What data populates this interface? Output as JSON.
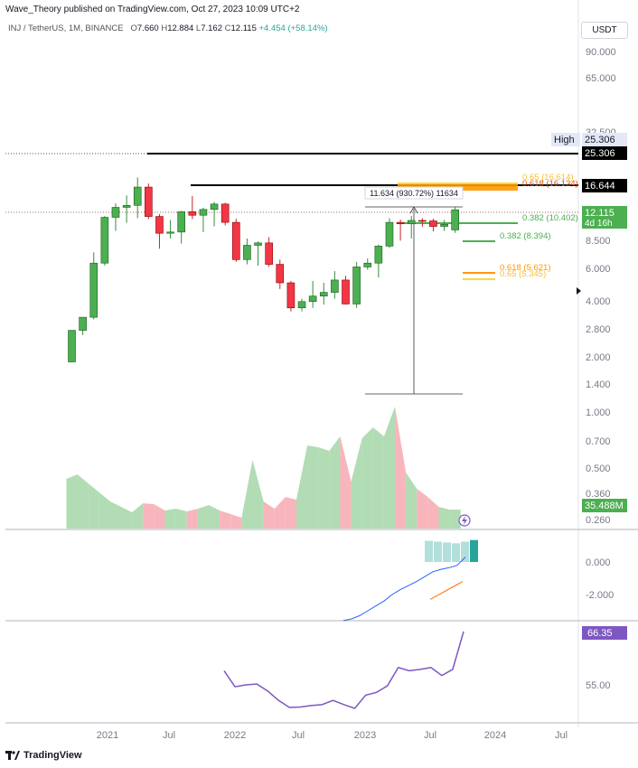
{
  "header": {
    "published": "Wave_Theory published on TradingView.com, Oct 27, 2023 10:09 UTC+2",
    "symbol": "INJ / TetherUS, 1M, BINANCE",
    "o_label": "O",
    "o": "7.660",
    "h_label": "H",
    "h": "12.884",
    "l_label": "L",
    "l": "7.162",
    "c_label": "C",
    "c": "12.115",
    "change": "+4.454 (+58.14%)",
    "currency": "USDT"
  },
  "footer": {
    "brand": "TradingView"
  },
  "colors": {
    "up": "#4caf50",
    "down": "#f23645",
    "vol_up": "#a5d6a7",
    "vol_down": "#f7a9b0",
    "rsi": "#7e57c2",
    "macd": "#2962ff",
    "signal": "#ff6d00"
  },
  "chart_data": {
    "type": "candlestick",
    "price_axis": {
      "scale": "log",
      "ticks": [
        "90.000",
        "65.000",
        "32.500",
        "8.500",
        "6.000",
        "4.000",
        "2.800",
        "2.000",
        "1.400",
        "1.000",
        "0.700",
        "0.500",
        "0.360",
        "0.260"
      ]
    },
    "time_axis": {
      "ticks": [
        "2021",
        "Jul",
        "2022",
        "Jul",
        "2023",
        "Jul",
        "2024",
        "Jul"
      ]
    },
    "candles": [
      {
        "t": "2020-12",
        "o": 0.38,
        "h": 0.78,
        "l": 0.38,
        "c": 0.78
      },
      {
        "t": "2021-01",
        "o": 0.78,
        "h": 1.05,
        "l": 0.7,
        "c": 1.05
      },
      {
        "t": "2021-02",
        "o": 1.05,
        "h": 4.6,
        "l": 1.0,
        "c": 3.6
      },
      {
        "t": "2021-03",
        "o": 3.6,
        "h": 10.5,
        "l": 3.4,
        "c": 10.2
      },
      {
        "t": "2021-04",
        "o": 10.2,
        "h": 14.0,
        "l": 7.5,
        "c": 12.8
      },
      {
        "t": "2021-05",
        "o": 12.8,
        "h": 16.8,
        "l": 9.0,
        "c": 13.4
      },
      {
        "t": "2021-06",
        "o": 13.4,
        "h": 25.3,
        "l": 10.0,
        "c": 20.3
      },
      {
        "t": "2021-07",
        "o": 20.3,
        "h": 22.0,
        "l": 9.8,
        "c": 10.4
      },
      {
        "t": "2021-08",
        "o": 10.4,
        "h": 11.0,
        "l": 5.0,
        "c": 7.1
      },
      {
        "t": "2021-09",
        "o": 7.1,
        "h": 9.6,
        "l": 6.3,
        "c": 7.3
      },
      {
        "t": "2021-10",
        "o": 7.3,
        "h": 11.8,
        "l": 5.6,
        "c": 11.6
      },
      {
        "t": "2021-11",
        "o": 11.6,
        "h": 16.6,
        "l": 9.8,
        "c": 10.7
      },
      {
        "t": "2021-12",
        "o": 10.7,
        "h": 12.7,
        "l": 7.3,
        "c": 12.2
      },
      {
        "t": "2022-01",
        "o": 12.2,
        "h": 14.5,
        "l": 8.3,
        "c": 13.8
      },
      {
        "t": "2022-02",
        "o": 13.8,
        "h": 14.2,
        "l": 8.5,
        "c": 9.1
      },
      {
        "t": "2022-03",
        "o": 9.1,
        "h": 9.9,
        "l": 3.7,
        "c": 3.9
      },
      {
        "t": "2022-04",
        "o": 3.9,
        "h": 6.3,
        "l": 3.5,
        "c": 5.4
      },
      {
        "t": "2022-05",
        "o": 5.4,
        "h": 5.9,
        "l": 3.4,
        "c": 5.7
      },
      {
        "t": "2022-06",
        "o": 5.7,
        "h": 6.5,
        "l": 3.3,
        "c": 3.5
      },
      {
        "t": "2022-07",
        "o": 3.5,
        "h": 3.9,
        "l": 2.0,
        "c": 2.3
      },
      {
        "t": "2022-08",
        "o": 2.3,
        "h": 2.4,
        "l": 1.2,
        "c": 1.3
      },
      {
        "t": "2022-09",
        "o": 1.3,
        "h": 1.6,
        "l": 1.2,
        "c": 1.5
      },
      {
        "t": "2022-10",
        "o": 1.5,
        "h": 2.4,
        "l": 1.3,
        "c": 1.7
      },
      {
        "t": "2022-11",
        "o": 1.7,
        "h": 2.3,
        "l": 1.4,
        "c": 1.85
      },
      {
        "t": "2022-12",
        "o": 1.85,
        "h": 3.0,
        "l": 1.6,
        "c": 2.45
      },
      {
        "t": "2023-01",
        "o": 2.45,
        "h": 2.7,
        "l": 1.4,
        "c": 1.42
      },
      {
        "t": "2023-02",
        "o": 1.42,
        "h": 3.7,
        "l": 1.3,
        "c": 3.3
      },
      {
        "t": "2023-03",
        "o": 3.3,
        "h": 4.0,
        "l": 3.1,
        "c": 3.6
      },
      {
        "t": "2023-04",
        "o": 3.6,
        "h": 5.5,
        "l": 2.6,
        "c": 5.3
      },
      {
        "t": "2023-05",
        "o": 5.3,
        "h": 10.0,
        "l": 5.1,
        "c": 9.1
      },
      {
        "t": "2023-06",
        "o": 9.1,
        "h": 9.7,
        "l": 6.0,
        "c": 8.8
      },
      {
        "t": "2023-07",
        "o": 8.8,
        "h": 10.5,
        "l": 6.3,
        "c": 9.5
      },
      {
        "t": "2023-08",
        "o": 9.5,
        "h": 10.0,
        "l": 8.2,
        "c": 9.4
      },
      {
        "t": "2023-09",
        "o": 9.4,
        "h": 9.9,
        "l": 7.4,
        "c": 8.3
      },
      {
        "t": "2023-10",
        "o": 8.3,
        "h": 9.6,
        "l": 7.5,
        "c": 8.7
      },
      {
        "t": "2023-11",
        "o": 7.66,
        "h": 12.884,
        "l": 7.162,
        "c": 12.115
      }
    ],
    "volume": [
      0.55,
      0.6,
      0.5,
      0.4,
      0.3,
      0.24,
      0.18,
      0.28,
      0.27,
      0.2,
      0.22,
      0.19,
      0.22,
      0.26,
      0.2,
      0.16,
      0.12,
      0.76,
      0.3,
      0.22,
      0.35,
      0.32,
      0.92,
      0.9,
      0.86,
      1.02,
      0.52,
      1.0,
      1.12,
      1.02,
      1.35,
      0.62,
      0.44,
      0.35,
      0.24,
      0.21
    ],
    "volume_label": "35.488M",
    "levels": [
      {
        "label": "High",
        "value": "25.306"
      },
      {
        "label": "",
        "value": "25.306"
      },
      {
        "label": "",
        "value": "16.644"
      },
      {
        "label": "",
        "value": "12.115",
        "sub": "4d 16h"
      }
    ],
    "fib_labels": [
      "0.65 (16.614)",
      "0.618 (16.134)",
      "0.382 (10.402)",
      "0.382 (8.394)",
      "0.618 (5.621)",
      "0.65 (5.345)"
    ],
    "measure_label": "11.634 (930.72%) 11634",
    "macd": {
      "ticks": [
        "0.000",
        "-2.000"
      ],
      "histogram": [
        1.3,
        1.25,
        1.2,
        1.15,
        1.25,
        1.35
      ],
      "macd_line": [
        -3.6,
        -3.5,
        -3.3,
        -3.0,
        -2.7,
        -2.4,
        -2.0,
        -1.7,
        -1.45,
        -1.2,
        -0.9,
        -0.6,
        -0.45,
        -0.35,
        -0.2,
        0.3
      ],
      "signal_line": [
        -2.3,
        -1.2
      ]
    },
    "rsi": {
      "value": "66.35",
      "tick": "55.00",
      "values": [
        58.0,
        54.6,
        55.0,
        55.2,
        53.7,
        51.7,
        50.2,
        50.3,
        50.6,
        50.8,
        51.7,
        50.8,
        50.0,
        52.8,
        53.4,
        54.8,
        58.7,
        58.0,
        58.3,
        58.7,
        57.0,
        58.3,
        66.35
      ]
    }
  }
}
